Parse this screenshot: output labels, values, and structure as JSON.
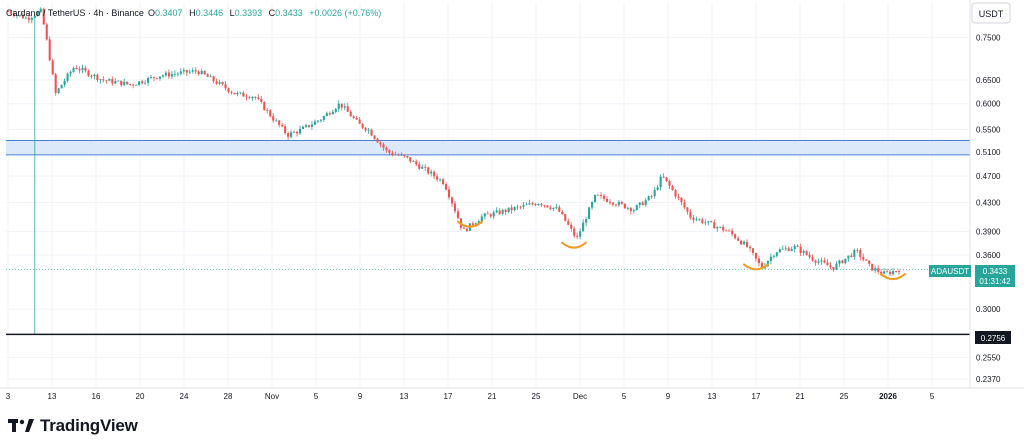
{
  "header": {
    "symbol": "Cardano / TetherUS · 4h · Binance",
    "open_label": "O",
    "open": "0.3407",
    "high_label": "H",
    "high": "0.3446",
    "low_label": "L",
    "low": "0.3393",
    "close_label": "C",
    "close": "0.3433",
    "change": "+0.0026 (+0.76%)"
  },
  "currency_button": "USDT",
  "ticker_badge": {
    "label": "ADAUSDT",
    "price": "0.3433",
    "countdown": "01:31:42"
  },
  "support_label": "0.2756",
  "brand": {
    "name": "TradingView"
  },
  "colors": {
    "up": "#26a69a",
    "down": "#ef5350",
    "zone_fill": "#dbe9fb",
    "zone_line": "#4a7fd9",
    "arc": "#f09a20",
    "support": "#131722",
    "badge": "#26a69a"
  },
  "chart_data": {
    "type": "candlestick",
    "scale": "log",
    "y_ticks": [
      0.75,
      0.65,
      0.6,
      0.55,
      0.51,
      0.47,
      0.43,
      0.39,
      0.36,
      0.3,
      0.255,
      0.237
    ],
    "y_tick_labels": [
      "0.7500",
      "0.6500",
      "0.6000",
      "0.5500",
      "0.5100",
      "0.4700",
      "0.4300",
      "0.3900",
      "0.3600",
      "0.3000",
      "0.2550",
      "0.2370"
    ],
    "x_ticks": [
      "3",
      "13",
      "16",
      "20",
      "24",
      "28",
      "Nov",
      "5",
      "9",
      "13",
      "17",
      "21",
      "25",
      "Dec",
      "5",
      "9",
      "13",
      "17",
      "21",
      "25",
      "2026",
      "5"
    ],
    "ylim": [
      0.23,
      0.84
    ],
    "resistance_zone": [
      0.505,
      0.53
    ],
    "support_level": 0.2756,
    "last_price": 0.3433,
    "wick_low": 0.2756,
    "price_path": [
      [
        0,
        0.82
      ],
      [
        0.02,
        0.8
      ],
      [
        0.035,
        0.82
      ],
      [
        0.05,
        0.62
      ],
      [
        0.07,
        0.68
      ],
      [
        0.1,
        0.65
      ],
      [
        0.13,
        0.64
      ],
      [
        0.16,
        0.66
      ],
      [
        0.2,
        0.67
      ],
      [
        0.24,
        0.62
      ],
      [
        0.26,
        0.615
      ],
      [
        0.28,
        0.57
      ],
      [
        0.295,
        0.54
      ],
      [
        0.31,
        0.55
      ],
      [
        0.33,
        0.57
      ],
      [
        0.35,
        0.6
      ],
      [
        0.37,
        0.56
      ],
      [
        0.38,
        0.55
      ],
      [
        0.4,
        0.51
      ],
      [
        0.42,
        0.5
      ],
      [
        0.44,
        0.48
      ],
      [
        0.46,
        0.46
      ],
      [
        0.48,
        0.39
      ],
      [
        0.5,
        0.41
      ],
      [
        0.53,
        0.42
      ],
      [
        0.56,
        0.43
      ],
      [
        0.58,
        0.42
      ],
      [
        0.6,
        0.38
      ],
      [
        0.62,
        0.44
      ],
      [
        0.64,
        0.43
      ],
      [
        0.66,
        0.42
      ],
      [
        0.68,
        0.44
      ],
      [
        0.69,
        0.47
      ],
      [
        0.7,
        0.45
      ],
      [
        0.72,
        0.41
      ],
      [
        0.74,
        0.4
      ],
      [
        0.76,
        0.39
      ],
      [
        0.78,
        0.37
      ],
      [
        0.795,
        0.345
      ],
      [
        0.81,
        0.365
      ],
      [
        0.83,
        0.37
      ],
      [
        0.85,
        0.355
      ],
      [
        0.87,
        0.345
      ],
      [
        0.895,
        0.365
      ],
      [
        0.91,
        0.345
      ],
      [
        0.925,
        0.338
      ],
      [
        0.94,
        0.343
      ]
    ],
    "rounded_bottoms": [
      0.395,
      0.368,
      0.342,
      0.331
    ]
  }
}
